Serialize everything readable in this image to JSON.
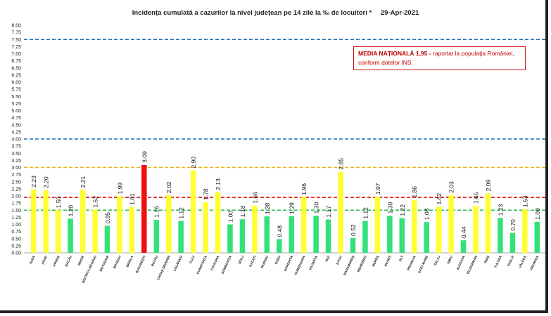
{
  "title": {
    "main": "Incidența cumulată a cazurilor la nivel județean pe 14 zile la ‰ de locuitori *",
    "date": "29-Apr-2021"
  },
  "legend_box": {
    "label_bold": "MEDIA NAȚIONALĂ  1,95 -",
    "label_rest": " raportat la populația României,",
    "line2": "conform datelor INS"
  },
  "colors": {
    "yellow": "#ffff33",
    "green": "#33e07a",
    "red": "#ee1111",
    "line_blue": "#1f6fb2",
    "line_orange": "#f0b000",
    "line_red": "#dd1111",
    "line_green": "#22bb44"
  },
  "chart_data": {
    "type": "bar",
    "title": "Incidența cumulată a cazurilor la nivel județean pe 14 zile la ‰ de locuitori *",
    "ylim": [
      0,
      8
    ],
    "ytick_step": 0.25,
    "reference_lines": [
      {
        "value": 7.5,
        "color": "#1f6fb2"
      },
      {
        "value": 4.0,
        "color": "#1f6fb2"
      },
      {
        "value": 3.0,
        "color": "#f0b000"
      },
      {
        "value": 1.95,
        "color": "#dd1111"
      },
      {
        "value": 1.5,
        "color": "#22bb44"
      }
    ],
    "categories": [
      "ALBA",
      "ARAD",
      "ARGEȘ",
      "BACĂU",
      "BIHOR",
      "BISTRIȚA-NĂSĂUD",
      "BOTOȘANI",
      "BRAȘOV",
      "BRĂILA",
      "BUCUREȘTI",
      "BUZĂU",
      "CARAȘ-SEVERIN",
      "CĂLĂRAȘI",
      "CLUJ",
      "CONSTANȚA",
      "COVASNA",
      "DÂMBOVIȚA",
      "DOLJ",
      "GALAȚI",
      "GIURGIU",
      "GORJ",
      "HARGHITA",
      "HUNEDOARA",
      "IALOMIȚA",
      "IAȘI",
      "ILFOV",
      "MARAMUREȘ",
      "MEHEDINȚI",
      "MUREȘ",
      "NEAMȚ",
      "OLT",
      "PRAHOVA",
      "SATU MARE",
      "SĂLAJ",
      "SIBIU",
      "SUCEAVA",
      "TELEORMAN",
      "TIMIȘ",
      "TULCEA",
      "VASLUI",
      "VÂLCEA",
      "VRANCEA"
    ],
    "values": [
      2.23,
      2.2,
      1.5,
      1.2,
      2.21,
      1.52,
      0.95,
      1.99,
      1.61,
      3.09,
      1.16,
      2.02,
      1.12,
      2.9,
      1.78,
      2.13,
      1.0,
      1.18,
      1.66,
      1.28,
      0.48,
      1.29,
      1.96,
      1.3,
      1.17,
      2.85,
      0.52,
      1.12,
      1.97,
      1.3,
      1.22,
      1.86,
      1.08,
      1.62,
      2.03,
      0.44,
      1.65,
      2.09,
      1.23,
      0.7,
      1.53,
      1.09
    ],
    "value_labels": [
      "2.23",
      "2.20",
      "1.50",
      "1.20",
      "2.21",
      "1.52",
      "0.95",
      "1.99",
      "1.61",
      "3.09",
      "1.16",
      "2.02",
      "1.12",
      "2.90",
      "1.78",
      "2.13",
      "1.00",
      "1.18",
      "1.66",
      "1.28",
      "0.48",
      "1.29",
      "1.96",
      "1.30",
      "1.17",
      "2.85",
      "0.52",
      "1.12",
      "1.97",
      "1.30",
      "1.22",
      "1.86",
      "1.08",
      "1.62",
      "2.03",
      "0.44",
      "1.65",
      "2.09",
      "1.23",
      "0.70",
      "1.53",
      "1.09"
    ],
    "colors": [
      "yellow",
      "yellow",
      "yellow",
      "green",
      "yellow",
      "yellow",
      "green",
      "yellow",
      "yellow",
      "red",
      "green",
      "yellow",
      "green",
      "yellow",
      "yellow",
      "yellow",
      "green",
      "green",
      "yellow",
      "green",
      "green",
      "green",
      "yellow",
      "green",
      "green",
      "yellow",
      "green",
      "green",
      "yellow",
      "green",
      "green",
      "yellow",
      "green",
      "yellow",
      "yellow",
      "green",
      "yellow",
      "yellow",
      "green",
      "green",
      "yellow",
      "green"
    ]
  }
}
